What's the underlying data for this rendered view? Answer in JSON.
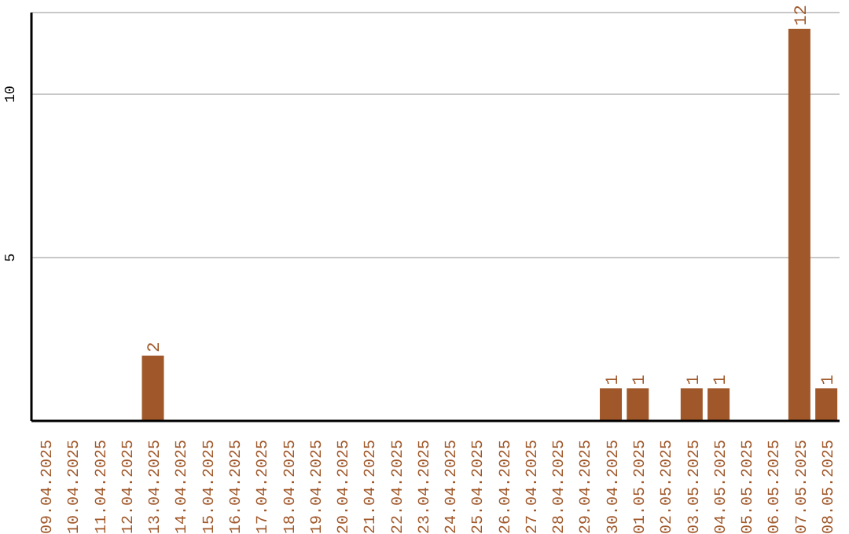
{
  "chart_data": {
    "type": "bar",
    "categories": [
      "09.04.2025",
      "10.04.2025",
      "11.04.2025",
      "12.04.2025",
      "13.04.2025",
      "14.04.2025",
      "15.04.2025",
      "16.04.2025",
      "17.04.2025",
      "18.04.2025",
      "19.04.2025",
      "20.04.2025",
      "21.04.2025",
      "22.04.2025",
      "23.04.2025",
      "24.04.2025",
      "25.04.2025",
      "26.04.2025",
      "27.04.2025",
      "28.04.2025",
      "29.04.2025",
      "30.04.2025",
      "01.05.2025",
      "02.05.2025",
      "03.05.2025",
      "04.05.2025",
      "05.05.2025",
      "06.05.2025",
      "07.05.2025",
      "08.05.2025"
    ],
    "values": [
      0,
      0,
      0,
      0,
      2,
      0,
      0,
      0,
      0,
      0,
      0,
      0,
      0,
      0,
      0,
      0,
      0,
      0,
      0,
      0,
      0,
      1,
      1,
      0,
      1,
      1,
      0,
      0,
      12,
      1
    ],
    "value_labels": [
      null,
      null,
      null,
      null,
      "2",
      null,
      null,
      null,
      null,
      null,
      null,
      null,
      null,
      null,
      null,
      null,
      null,
      null,
      null,
      null,
      null,
      "1",
      "1",
      null,
      "1",
      "1",
      null,
      null,
      "12",
      "1"
    ],
    "color": "#a0582a",
    "ylim": [
      0,
      12.5
    ],
    "yticks": [
      5,
      10
    ],
    "grid": "y"
  }
}
